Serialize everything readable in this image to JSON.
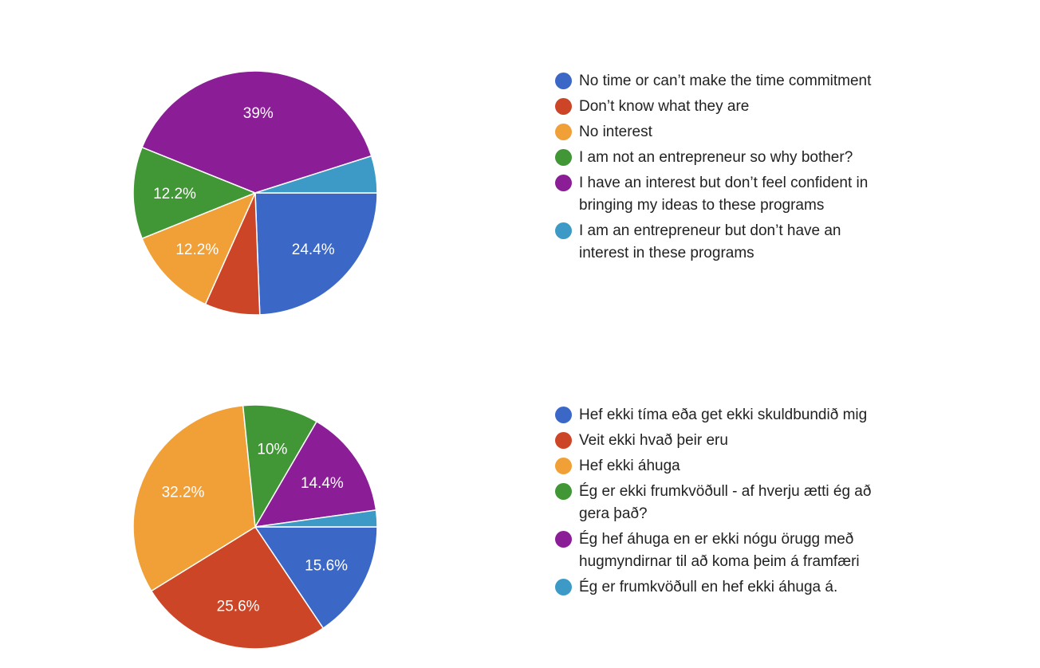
{
  "chart_data": [
    {
      "type": "pie",
      "title": "",
      "legend_position": "right",
      "slices": [
        {
          "label": "No time or can’t make the time commitment",
          "value": 24.4,
          "display": "24.4%",
          "color": "#3b67c7"
        },
        {
          "label": "Don’t know what they are",
          "value": 7.3,
          "display": "",
          "color": "#cc4527"
        },
        {
          "label": "No interest",
          "value": 12.2,
          "display": "12.2%",
          "color": "#f1a038"
        },
        {
          "label": "I am not an entrepreneur so why bother?",
          "value": 12.2,
          "display": "12.2%",
          "color": "#419636"
        },
        {
          "label": "I have an interest but don’t feel confident in bringing my ideas to these programs",
          "value": 39.0,
          "display": "39%",
          "color": "#8b1e96"
        },
        {
          "label": "I am an entrepreneur but don’t have an interest in these programs",
          "value": 4.9,
          "display": "",
          "color": "#3d9ac7"
        }
      ]
    },
    {
      "type": "pie",
      "title": "",
      "legend_position": "right",
      "slices": [
        {
          "label": "Hef ekki tíma eða get ekki skuldbundið mig",
          "value": 15.6,
          "display": "15.6%",
          "color": "#3b67c7"
        },
        {
          "label": "Veit ekki hvað þeir eru",
          "value": 25.6,
          "display": "25.6%",
          "color": "#cc4527"
        },
        {
          "label": "Hef ekki áhuga",
          "value": 32.2,
          "display": "32.2%",
          "color": "#f1a038"
        },
        {
          "label": "Ég er ekki frumkvöðull - af hverju ætti ég að gera það?",
          "value": 10.0,
          "display": "10%",
          "color": "#419636"
        },
        {
          "label": "Ég hef áhuga en er ekki nógu örugg með hugmyndirnar til að koma þeim á framfæri",
          "value": 14.4,
          "display": "14.4%",
          "color": "#8b1e96"
        },
        {
          "label": "Ég er frumkvöðull en hef ekki áhuga á.",
          "value": 2.2,
          "display": "",
          "color": "#3d9ac7"
        }
      ]
    }
  ]
}
